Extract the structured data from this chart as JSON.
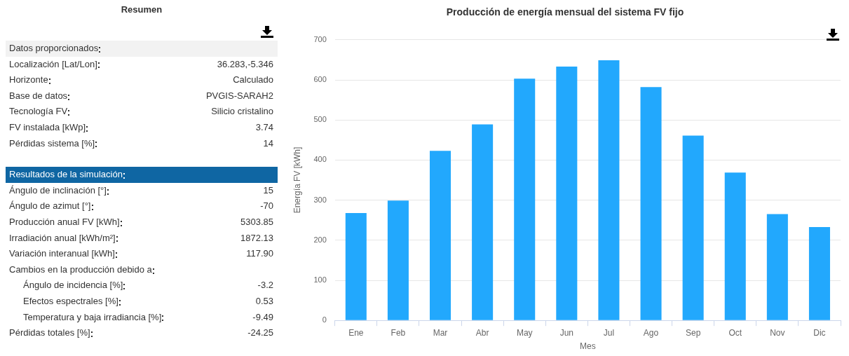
{
  "chart_data": [
    {
      "type": "other",
      "title": "Resumen",
      "categories": [
        "Datos proporcionados",
        "Localización [Lat/Lon]",
        "Horizonte",
        "Base de datos",
        "Tecnología FV",
        "FV instalada [kWp]",
        "Pérdidas sistema [%]",
        "Resultados de la simulación",
        "Ángulo de inclinación [°]",
        "Ángulo de azimut [°]",
        "Producción anual FV [kWh]",
        "Irradiación anual [kWh/m²]",
        "Variación interanual [kWh]",
        "Cambios en la producción debido a",
        "Ángulo de incidencia [%]",
        "Efectos espectrales [%]",
        "Temperatura y baja irradiancia [%]",
        "Pérdidas totales [%]"
      ],
      "value_labels": [
        null,
        "36.283,-5.346",
        "Calculado",
        "PVGIS-SARAH2",
        "Silicio cristalino",
        "3.74",
        "14",
        null,
        "15",
        "-70",
        "5303.85",
        "1872.13",
        "117.90",
        null,
        "-3.2",
        "0.53",
        "-9.49",
        "-24.25"
      ]
    },
    {
      "type": "bar",
      "title": "Producción de energía mensual del sistema FV fijo",
      "xlabel": "Mes",
      "ylabel": "Energía FV [kWh]",
      "categories": [
        "Ene",
        "Feb",
        "Mar",
        "Abr",
        "May",
        "Jun",
        "Jul",
        "Ago",
        "Sep",
        "Oct",
        "Nov",
        "Dic"
      ],
      "values": [
        268,
        299,
        423,
        489,
        603,
        633,
        649,
        582,
        461,
        369,
        265,
        233
      ],
      "color": "#22a8fd",
      "ylim": [
        0,
        700
      ],
      "yticks": [
        0,
        100,
        200,
        300,
        400,
        500,
        600,
        700
      ],
      "grid": "y"
    }
  ]
}
